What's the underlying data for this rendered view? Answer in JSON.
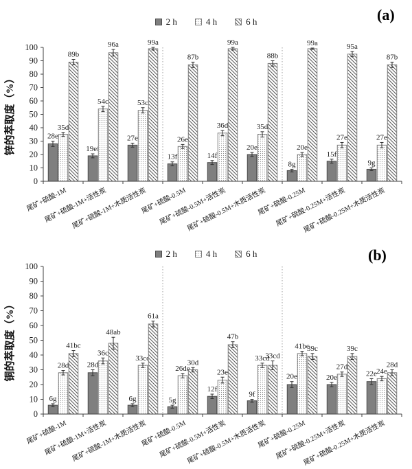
{
  "figure_title": "",
  "panels": [
    {
      "panel_label": "(a)",
      "ylabel": "锌的萃取度（%）"
    },
    {
      "panel_label": "(b)",
      "ylabel": "铜的萃取度（%）"
    }
  ],
  "colors": {
    "bar_2h_fill": "#7f7f7f",
    "bar_2h_stroke": "#4b4b4b",
    "pattern_stroke": "#565656",
    "pattern_dot": "#8f8f8f",
    "axis": "#3f3f3f",
    "separator": "#a0a0a0",
    "error_bar": "#2f2f2f"
  },
  "chart_data": [
    {
      "type": "bar",
      "panel": "a",
      "panel_label": "(a)",
      "title": "",
      "xlabel": "",
      "ylabel": "锌的萃取度（%）",
      "ylim": [
        0,
        100
      ],
      "ytick_step": 10,
      "grid": false,
      "legend_position": "top-center",
      "legend_labels": [
        "2 h",
        "4 h",
        "6 h"
      ],
      "group_separators_after": [
        3,
        6
      ],
      "categories": [
        "尾矿+硫酸-1M",
        "尾矿+硫酸-1M+活性炭",
        "尾矿+硫酸-1M+木质活性炭",
        "尾矿+硫酸-0.5M",
        "尾矿+硫酸-0.5M+活性炭",
        "尾矿+硫酸-0.5M+木质活性炭",
        "尾矿+硫酸-0.25M",
        "尾矿+硫酸-0.25M+活性炭",
        "尾矿+硫酸-0.25M+木质活性炭"
      ],
      "series": [
        {
          "name": "2 h",
          "pattern": "solid-gray",
          "values": [
            28,
            19,
            27,
            13,
            14,
            20,
            8,
            15,
            9
          ],
          "bar_labels": [
            "28e",
            "19ef",
            "27e",
            "13f",
            "14f",
            "20e",
            "8g",
            "15f",
            "9g"
          ],
          "errors": [
            2,
            1.5,
            1.5,
            1.5,
            1.5,
            1.5,
            1,
            1.5,
            1
          ]
        },
        {
          "name": "4 h",
          "pattern": "dots",
          "values": [
            35,
            54,
            53,
            26,
            36,
            35,
            20,
            27,
            27
          ],
          "bar_labels": [
            "35d",
            "54c",
            "53c",
            "26e",
            "36d",
            "35d",
            "20e",
            "27e",
            "27e"
          ],
          "errors": [
            1.5,
            2,
            2,
            1.5,
            2,
            2,
            1.5,
            2,
            2
          ]
        },
        {
          "name": "6 h",
          "pattern": "diagonal",
          "values": [
            89,
            96,
            99,
            87,
            99,
            88,
            99,
            95,
            87
          ],
          "bar_labels": [
            "89b",
            "96a",
            "99a",
            "87b",
            "99a",
            "88b",
            "99a",
            "95a",
            "87b"
          ],
          "errors": [
            2,
            2.5,
            1,
            2,
            1,
            2,
            0.5,
            2,
            2
          ]
        }
      ]
    },
    {
      "type": "bar",
      "panel": "b",
      "panel_label": "(b)",
      "title": "",
      "xlabel": "",
      "ylabel": "铜的萃取度（%）",
      "ylim": [
        0,
        100
      ],
      "ytick_step": 10,
      "grid": false,
      "legend_position": "top-center",
      "legend_labels": [
        "2 h",
        "4 h",
        "6 h"
      ],
      "group_separators_after": [
        3,
        6
      ],
      "categories": [
        "尾矿+硫酸-1M",
        "尾矿+硫酸-1M+活性炭",
        "尾矿+硫酸-1M+木质活性炭",
        "尾矿+硫酸-0.5M",
        "尾矿+硫酸-0.5M+活性炭",
        "尾矿+硫酸-0.5M+木质活性炭",
        "尾矿+硫酸-0.25M",
        "尾矿+硫酸-0.25M+活性炭",
        "尾矿+硫酸-0.25M+木质活性炭"
      ],
      "series": [
        {
          "name": "2 h",
          "pattern": "solid-gray",
          "values": [
            6,
            28,
            6,
            5,
            12,
            9,
            20,
            20,
            22
          ],
          "bar_labels": [
            "6g",
            "28d",
            "6g",
            "5g",
            "12f",
            "9f",
            "20e",
            "20e",
            "22e"
          ],
          "errors": [
            1,
            2,
            1,
            1,
            1.5,
            1,
            2,
            1.5,
            2
          ]
        },
        {
          "name": "4 h",
          "pattern": "dots",
          "values": [
            28,
            36,
            33,
            26,
            23,
            33,
            41,
            27,
            24
          ],
          "bar_labels": [
            "28d",
            "36c",
            "33cd",
            "26de",
            "23e",
            "33cd",
            "41bc",
            "27d",
            "24e"
          ],
          "errors": [
            1.5,
            2,
            1.5,
            1.5,
            2,
            1.5,
            1.5,
            1.5,
            1.5
          ]
        },
        {
          "name": "6 h",
          "pattern": "diagonal",
          "values": [
            41,
            48,
            61,
            30,
            47,
            33,
            39,
            39,
            28
          ],
          "bar_labels": [
            "41bc",
            "48ab",
            "61a",
            "30d",
            "47b",
            "33cd",
            "39c",
            "39c",
            "28d"
          ],
          "errors": [
            2,
            4,
            2,
            1.5,
            2,
            3,
            2,
            2,
            2
          ]
        }
      ]
    }
  ]
}
